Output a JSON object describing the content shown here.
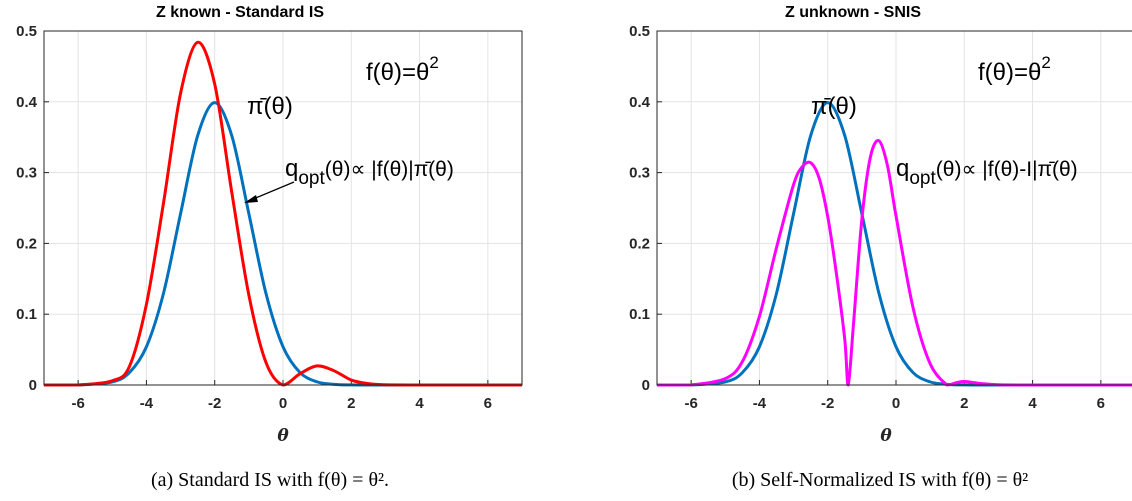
{
  "chart_data": [
    {
      "type": "line",
      "title": "Z known - Standard IS",
      "xlabel": "θ",
      "xlim": [
        -7,
        7
      ],
      "ylim": [
        0,
        0.5
      ],
      "xticks": [
        "-6",
        "-4",
        "-2",
        "0",
        "2",
        "4",
        "6"
      ],
      "yticks": [
        "0",
        "0.1",
        "0.2",
        "0.3",
        "0.4",
        "0.5"
      ],
      "grid": true,
      "series": [
        {
          "name": "π̄(θ)",
          "color": "#0072bd",
          "x": [
            -7,
            -6,
            -5,
            -4.5,
            -4,
            -3.5,
            -3,
            -2.5,
            -2,
            -1.5,
            -1,
            -0.5,
            0,
            0.5,
            1,
            1.5,
            2,
            2.5,
            3,
            3.5,
            4,
            5,
            6,
            7
          ],
          "y": [
            0,
            0.0001,
            0.0044,
            0.0175,
            0.054,
            0.1295,
            0.242,
            0.3521,
            0.3989,
            0.3521,
            0.242,
            0.1295,
            0.054,
            0.0175,
            0.0044,
            0.0009,
            0.0001,
            0,
            0,
            0,
            0,
            0,
            0,
            0
          ]
        },
        {
          "name": "q_opt(θ)∝ |f(θ)|π̄(θ)",
          "color": "#ff0000",
          "x": [
            -7,
            -6,
            -5,
            -4.5,
            -4,
            -3.5,
            -3,
            -2.5,
            -2,
            -1.5,
            -1,
            -0.5,
            0,
            0.5,
            1,
            1.5,
            2,
            2.5,
            3,
            4,
            5,
            6,
            7
          ],
          "y": [
            0,
            0.0001,
            0.006,
            0.026,
            0.114,
            0.257,
            0.412,
            0.484,
            0.425,
            0.272,
            0.127,
            0.032,
            0,
            0.016,
            0.027,
            0.02,
            0.007,
            0.002,
            0.0003,
            0,
            0,
            0,
            0
          ]
        }
      ]
    },
    {
      "type": "line",
      "title": "Z unknown - SNIS",
      "xlabel": "θ",
      "xlim": [
        -7,
        7
      ],
      "ylim": [
        0,
        0.5
      ],
      "xticks": [
        "-6",
        "-4",
        "-2",
        "0",
        "2",
        "4",
        "6"
      ],
      "yticks": [
        "0",
        "0.1",
        "0.2",
        "0.3",
        "0.4",
        "0.5"
      ],
      "grid": true,
      "series": [
        {
          "name": "π̄(θ)",
          "color": "#0072bd",
          "x": [
            -7,
            -6,
            -5,
            -4.5,
            -4,
            -3.5,
            -3,
            -2.5,
            -2,
            -1.5,
            -1,
            -0.5,
            0,
            0.5,
            1,
            1.5,
            2,
            2.5,
            3,
            3.5,
            4,
            5,
            6,
            7
          ],
          "y": [
            0,
            0.0001,
            0.0044,
            0.0175,
            0.054,
            0.1295,
            0.242,
            0.3521,
            0.3989,
            0.3521,
            0.242,
            0.1295,
            0.054,
            0.0175,
            0.0044,
            0.0009,
            0.0001,
            0,
            0,
            0,
            0,
            0,
            0,
            0
          ]
        },
        {
          "name": "q_opt(θ)∝ |f(θ)-I|π̄(θ)",
          "color": "#ff00ff",
          "x": [
            -7,
            -6,
            -5,
            -4.5,
            -4,
            -3.5,
            -3,
            -2.75,
            -2.5,
            -2.25,
            -2,
            -1.75,
            -1.5,
            -1.4,
            -1.25,
            -1,
            -0.75,
            -0.5,
            -0.25,
            0,
            0.5,
            1,
            1.5,
            1.75,
            2,
            2.5,
            3,
            4,
            5,
            6,
            7
          ],
          "y": [
            0,
            0.0002,
            0.009,
            0.033,
            0.097,
            0.194,
            0.283,
            0.308,
            0.314,
            0.292,
            0.238,
            0.159,
            0.064,
            0,
            0.083,
            0.234,
            0.322,
            0.345,
            0.31,
            0.239,
            0.109,
            0.03,
            0,
            0.003,
            0.005,
            0.002,
            0.0003,
            0,
            0,
            0,
            0
          ]
        }
      ]
    }
  ],
  "panels": [
    {
      "annotations": {
        "f_label": "f(θ)=θ",
        "f_exp": "2",
        "pi_label": "π̄(θ)",
        "q_prefix": "q",
        "q_sub": "opt",
        "q_suffix": "(θ)∝ |f(θ)|π̄(θ)"
      },
      "caption": "(a) Standard IS with f(θ) = θ²."
    },
    {
      "annotations": {
        "f_label": "f(θ)=θ",
        "f_exp": "2",
        "pi_label": "π̄(θ)",
        "q_prefix": "q",
        "q_sub": "opt",
        "q_suffix": "(θ)∝ |f(θ)-I|π̄(θ)"
      },
      "caption": "(b) Self-Normalized IS with f(θ) = θ²"
    }
  ]
}
